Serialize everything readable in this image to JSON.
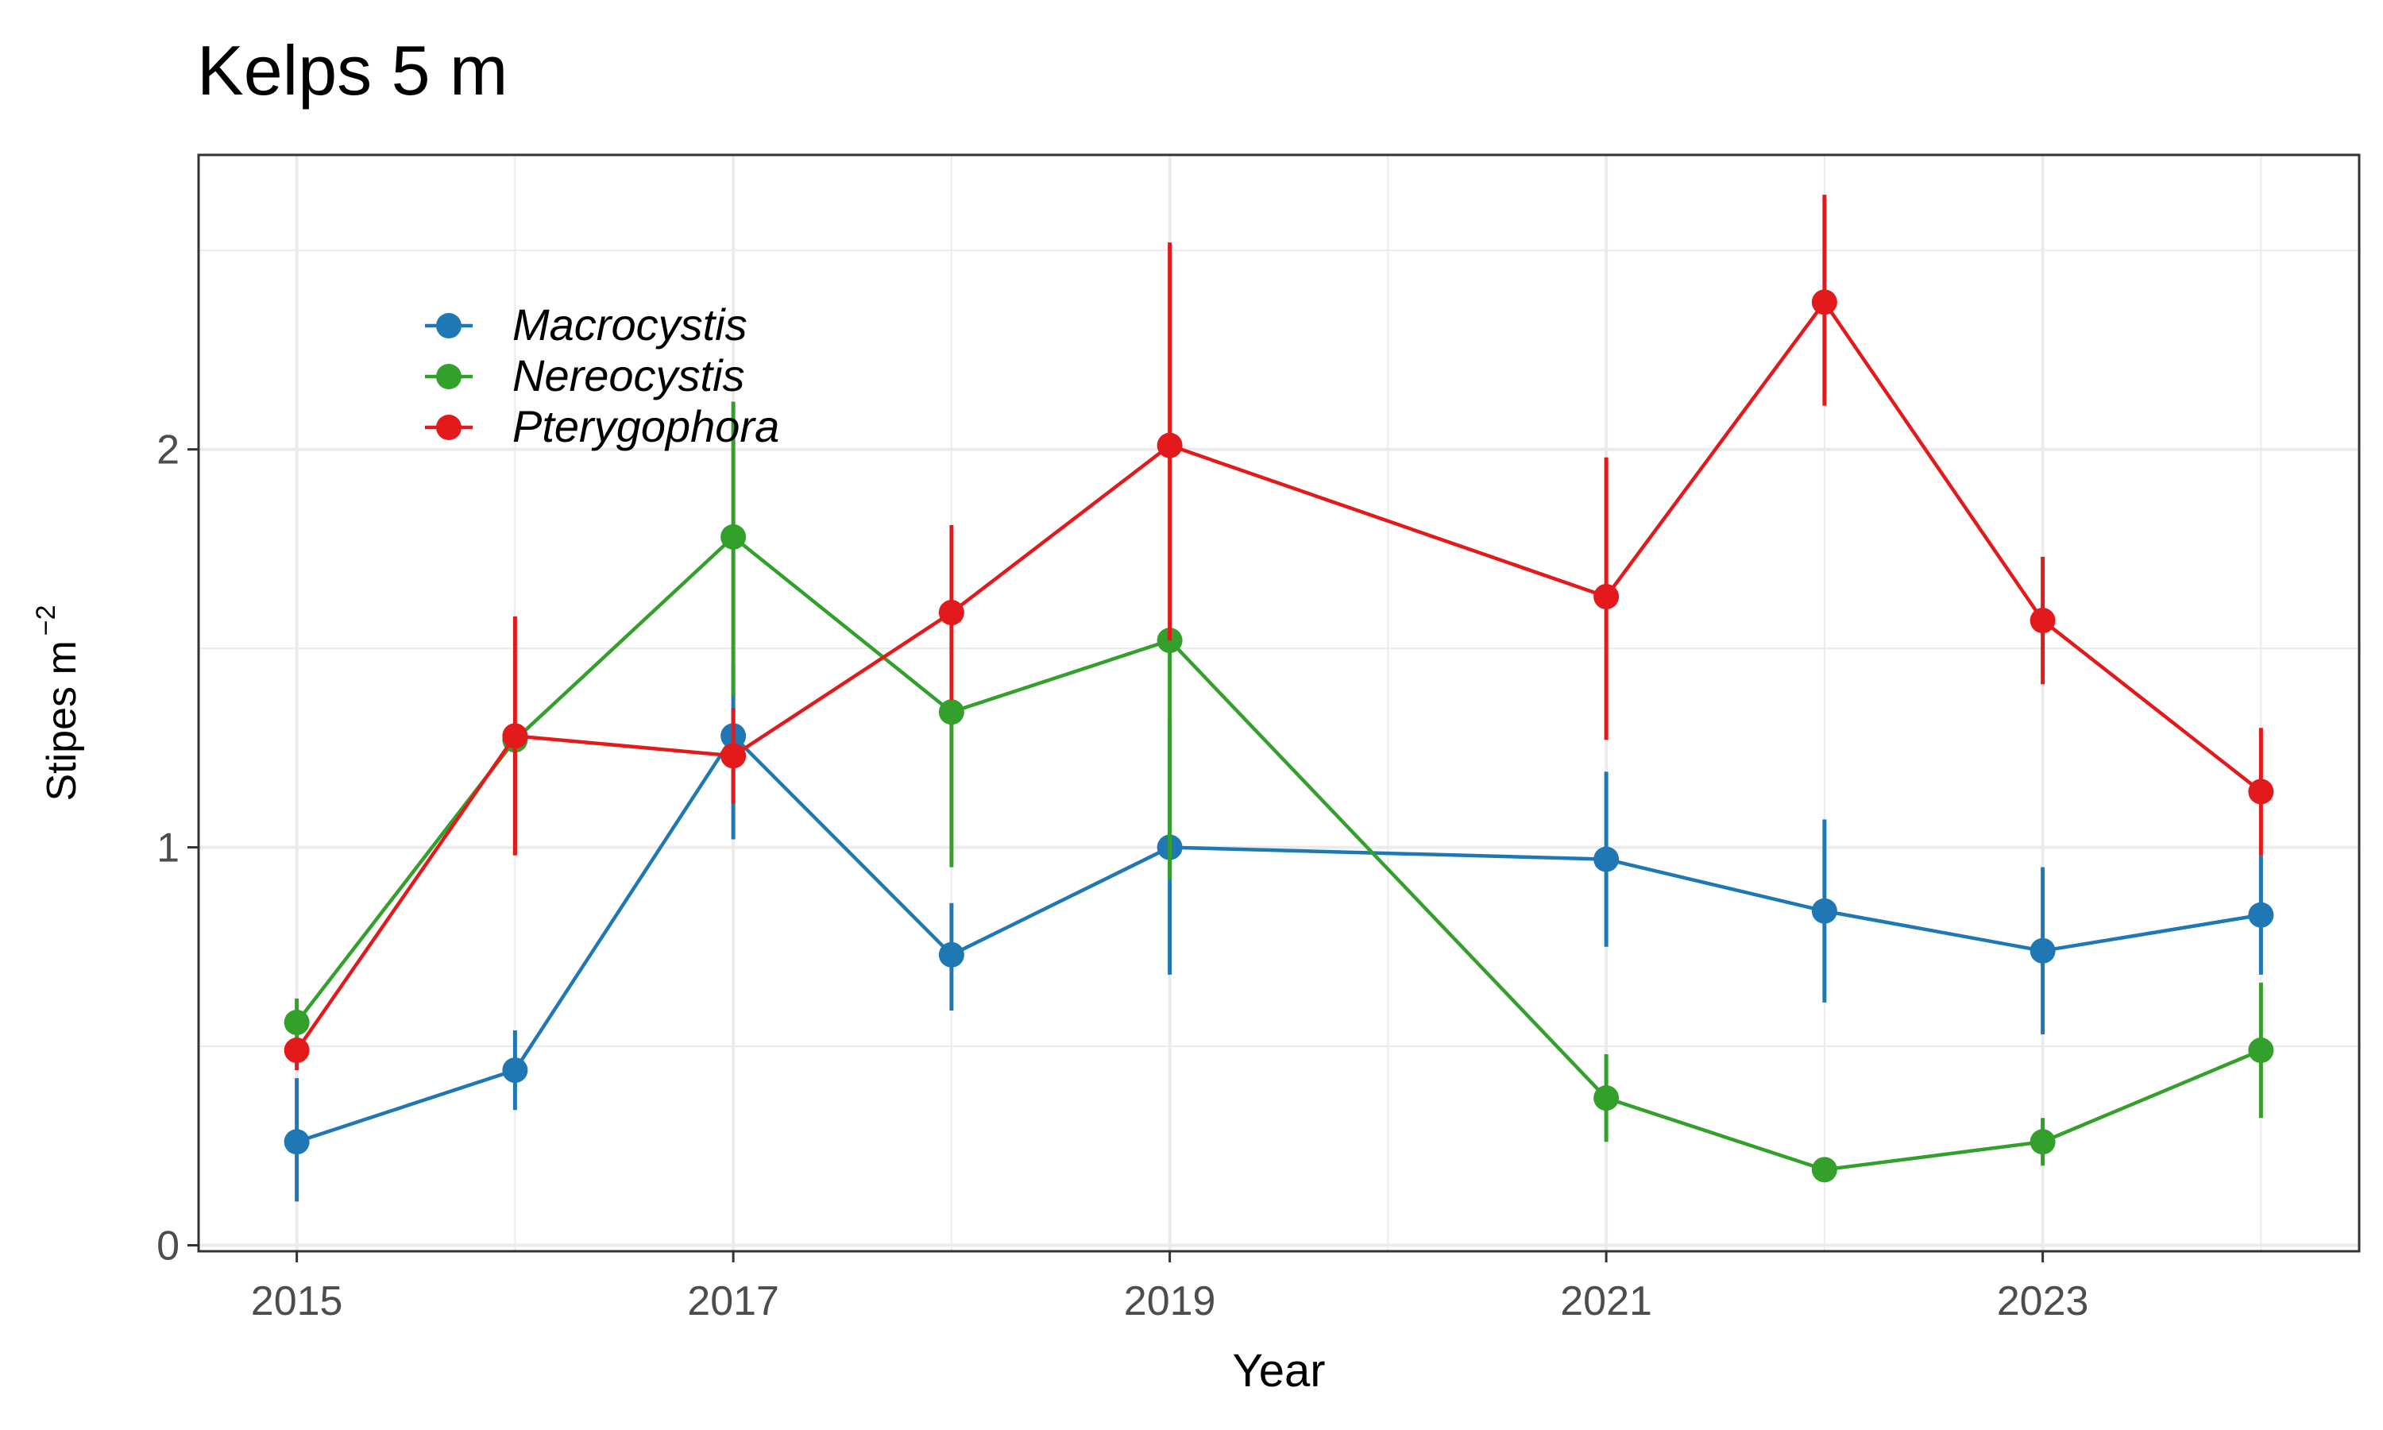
{
  "chart_data": {
    "type": "line",
    "title": "Kelps 5 m",
    "xlabel": "Year",
    "ylabel": "Stipes m",
    "ylabel_superscript": "−2",
    "xlim": [
      2014.55,
      2024.45
    ],
    "ylim": [
      -0.015,
      2.74
    ],
    "x_ticks": [
      2015,
      2017,
      2019,
      2021,
      2023
    ],
    "x_tick_labels": [
      "2015",
      "2017",
      "2019",
      "2021",
      "2023"
    ],
    "y_ticks": [
      0,
      1,
      2
    ],
    "y_tick_labels": [
      "0",
      "1",
      "2"
    ],
    "grid": true,
    "legend_position": "top-left",
    "series": [
      {
        "name": "Macrocystis",
        "color": "#1f78b4",
        "points": [
          {
            "x": 2015,
            "y": 0.26,
            "lo": 0.11,
            "hi": 0.42
          },
          {
            "x": 2016,
            "y": 0.44,
            "lo": 0.34,
            "hi": 0.54
          },
          {
            "x": 2017,
            "y": 1.28,
            "lo": 1.02,
            "hi": 1.46
          },
          {
            "x": 2018,
            "y": 0.73,
            "lo": 0.59,
            "hi": 0.86
          },
          {
            "x": 2019,
            "y": 1.0,
            "lo": 0.68,
            "hi": 1.32
          },
          {
            "x": 2021,
            "y": 0.97,
            "lo": 0.75,
            "hi": 1.19
          },
          {
            "x": 2022,
            "y": 0.84,
            "lo": 0.61,
            "hi": 1.07
          },
          {
            "x": 2023,
            "y": 0.74,
            "lo": 0.53,
            "hi": 0.95
          },
          {
            "x": 2024,
            "y": 0.83,
            "lo": 0.68,
            "hi": 0.98
          }
        ]
      },
      {
        "name": "Nereocystis",
        "color": "#33a02c",
        "points": [
          {
            "x": 2015,
            "y": 0.56,
            "lo": 0.47,
            "hi": 0.62
          },
          {
            "x": 2016,
            "y": 1.27,
            "lo": 0.98,
            "hi": 1.29
          },
          {
            "x": 2017,
            "y": 1.78,
            "lo": 1.38,
            "hi": 2.12
          },
          {
            "x": 2018,
            "y": 1.34,
            "lo": 0.95,
            "hi": 1.36
          },
          {
            "x": 2019,
            "y": 1.52,
            "lo": 0.92,
            "hi": 1.54
          },
          {
            "x": 2021,
            "y": 0.37,
            "lo": 0.26,
            "hi": 0.48
          },
          {
            "x": 2022,
            "y": 0.19,
            "lo": 0.17,
            "hi": 0.21
          },
          {
            "x": 2023,
            "y": 0.26,
            "lo": 0.2,
            "hi": 0.32
          },
          {
            "x": 2024,
            "y": 0.49,
            "lo": 0.32,
            "hi": 0.66
          }
        ]
      },
      {
        "name": "Pterygophora",
        "color": "#e31a1c",
        "points": [
          {
            "x": 2015,
            "y": 0.49,
            "lo": 0.44,
            "hi": 0.52
          },
          {
            "x": 2016,
            "y": 1.28,
            "lo": 0.98,
            "hi": 1.58
          },
          {
            "x": 2017,
            "y": 1.23,
            "lo": 1.11,
            "hi": 1.35
          },
          {
            "x": 2018,
            "y": 1.59,
            "lo": 1.37,
            "hi": 1.81
          },
          {
            "x": 2019,
            "y": 2.01,
            "lo": 1.52,
            "hi": 2.52
          },
          {
            "x": 2021,
            "y": 1.63,
            "lo": 1.27,
            "hi": 1.98
          },
          {
            "x": 2022,
            "y": 2.37,
            "lo": 2.11,
            "hi": 2.64
          },
          {
            "x": 2023,
            "y": 1.57,
            "lo": 1.41,
            "hi": 1.73
          },
          {
            "x": 2024,
            "y": 1.14,
            "lo": 0.98,
            "hi": 1.3
          }
        ]
      }
    ]
  }
}
